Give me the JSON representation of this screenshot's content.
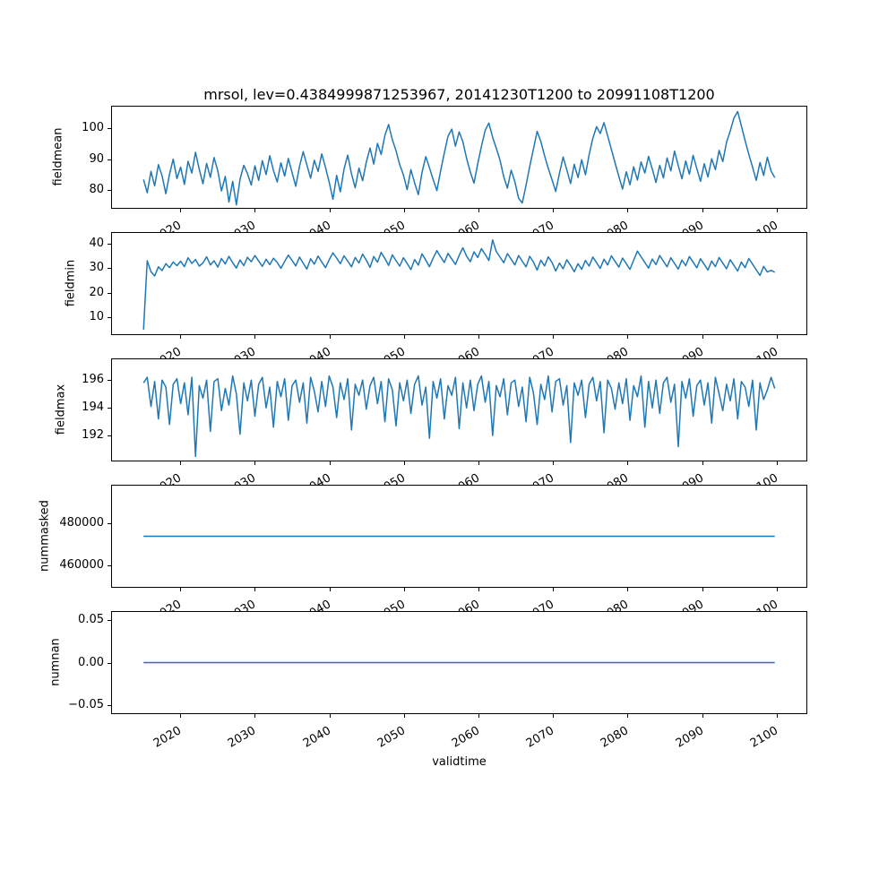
{
  "title": "mrsol, lev=0.4384999871253967, 20141230T1200 to 20991108T1200",
  "xlabel": "validtime",
  "line_color": "#1f77b4",
  "axis_color": "#000000",
  "background_color": "#ffffff",
  "xticks": {
    "values": [
      2020,
      2030,
      2040,
      2050,
      2060,
      2070,
      2080,
      2090,
      2100
    ],
    "labels": [
      "2020",
      "2030",
      "2040",
      "2050",
      "2060",
      "2070",
      "2080",
      "2090",
      "2100"
    ]
  },
  "chart_data": [
    {
      "type": "line",
      "name": "fieldmean",
      "ylabel": "fieldmean",
      "x_start": 2014.97,
      "x_end": 2099.86,
      "xlim": [
        2010.73,
        2104.11
      ],
      "ylim": [
        74.3,
        107.1
      ],
      "yticks": {
        "values": [
          80,
          90,
          100
        ],
        "labels": [
          "80",
          "90",
          "100"
        ]
      },
      "values": [
        83.5,
        79.2,
        86.1,
        81.4,
        88.3,
        84.7,
        78.9,
        85.2,
        90.1,
        83.8,
        87.5,
        81.9,
        89.4,
        85.6,
        92.3,
        86.8,
        82.1,
        88.7,
        84.2,
        90.6,
        86.3,
        79.8,
        84.5,
        76.2,
        82.9,
        75.3,
        83.6,
        88.1,
        85.4,
        81.7,
        87.9,
        83.2,
        89.6,
        85.1,
        91.2,
        86.4,
        82.7,
        88.9,
        84.6,
        90.3,
        85.7,
        81.3,
        87.8,
        92.5,
        88.2,
        83.9,
        89.7,
        86.1,
        91.8,
        87.4,
        82.6,
        77.1,
        84.8,
        79.5,
        86.9,
        91.4,
        85.3,
        80.8,
        87.2,
        83.1,
        89.1,
        93.7,
        88.5,
        95.2,
        91.6,
        97.8,
        101.3,
        96.4,
        92.8,
        88.3,
        84.9,
        80.2,
        86.7,
        82.4,
        78.6,
        85.8,
        90.9,
        87.3,
        83.5,
        79.9,
        86.2,
        92.1,
        97.5,
        99.8,
        94.3,
        98.9,
        95.7,
        90.4,
        85.9,
        82.3,
        88.6,
        94.2,
        99.4,
        101.8,
        97.2,
        93.6,
        89.8,
        84.4,
        80.7,
        86.5,
        82.8,
        77.4,
        75.9,
        81.6,
        87.7,
        93.3,
        99.1,
        95.8,
        91.2,
        87.1,
        83.4,
        79.6,
        85.5,
        90.8,
        86.6,
        82.2,
        88.4,
        84.1,
        89.9,
        85.0,
        91.5,
        96.9,
        100.6,
        98.4,
        101.9,
        97.6,
        93.2,
        88.8,
        84.5,
        80.4,
        86.0,
        81.8,
        87.6,
        83.3,
        89.2,
        85.6,
        91.0,
        86.9,
        82.5,
        88.1,
        84.0,
        90.5,
        86.3,
        92.7,
        88.0,
        83.7,
        89.5,
        85.2,
        91.3,
        87.0,
        82.9,
        88.6,
        84.3,
        90.2,
        86.7,
        92.9,
        89.3,
        95.6,
        99.2,
        103.4,
        105.5,
        100.9,
        96.1,
        91.7,
        87.5,
        83.2,
        89.0,
        84.8,
        90.7,
        86.2,
        84.1
      ]
    },
    {
      "type": "line",
      "name": "fieldmin",
      "ylabel": "fieldmin",
      "x_start": 2014.97,
      "x_end": 2099.86,
      "xlim": [
        2010.73,
        2104.11
      ],
      "ylim": [
        3.1,
        44.3
      ],
      "yticks": {
        "values": [
          10,
          20,
          30,
          40
        ],
        "labels": [
          "10",
          "20",
          "30",
          "40"
        ]
      },
      "values": [
        5.0,
        33.0,
        28.5,
        26.8,
        30.5,
        29.0,
        31.8,
        30.2,
        32.5,
        31.0,
        32.8,
        30.6,
        34.2,
        31.9,
        33.5,
        30.8,
        32.1,
        34.6,
        31.3,
        33.0,
        30.4,
        33.9,
        31.7,
        34.8,
        32.2,
        30.0,
        33.3,
        31.0,
        34.4,
        32.6,
        35.1,
        32.9,
        30.7,
        33.6,
        31.4,
        34.0,
        32.3,
        29.9,
        32.7,
        35.3,
        33.1,
        30.9,
        34.5,
        32.0,
        29.6,
        33.8,
        31.6,
        34.9,
        32.5,
        30.2,
        33.4,
        36.2,
        34.1,
        31.8,
        35.0,
        32.8,
        30.5,
        34.3,
        32.1,
        35.7,
        33.2,
        30.3,
        34.7,
        32.4,
        36.4,
        33.9,
        31.1,
        35.4,
        33.0,
        30.8,
        34.2,
        31.9,
        29.4,
        33.5,
        31.2,
        35.8,
        33.3,
        30.6,
        34.0,
        37.1,
        34.6,
        32.3,
        36.0,
        33.7,
        31.5,
        35.2,
        38.3,
        34.9,
        32.6,
        36.6,
        34.3,
        37.9,
        35.6,
        33.1,
        41.5,
        36.8,
        34.5,
        32.2,
        35.9,
        33.6,
        31.3,
        35.1,
        32.8,
        30.5,
        34.8,
        32.5,
        29.2,
        33.2,
        30.9,
        34.6,
        32.3,
        28.8,
        32.0,
        29.7,
        33.4,
        31.1,
        28.5,
        31.8,
        29.5,
        33.1,
        30.8,
        34.5,
        32.2,
        29.9,
        33.6,
        31.3,
        35.0,
        32.7,
        30.4,
        34.1,
        31.8,
        29.5,
        33.2,
        36.9,
        34.6,
        32.3,
        30.0,
        33.7,
        31.4,
        35.1,
        32.8,
        30.5,
        34.2,
        31.9,
        29.6,
        33.3,
        31.0,
        34.7,
        32.4,
        30.1,
        33.8,
        31.5,
        29.2,
        32.9,
        30.6,
        34.3,
        32.0,
        29.7,
        33.4,
        31.1,
        28.8,
        32.5,
        30.2,
        33.9,
        31.6,
        29.3,
        27.0,
        30.7,
        28.4,
        29.1,
        28.3
      ]
    },
    {
      "type": "line",
      "name": "fieldmax",
      "ylabel": "fieldmax",
      "x_start": 2014.97,
      "x_end": 2099.86,
      "xlim": [
        2010.73,
        2104.11
      ],
      "ylim": [
        190.2,
        197.5
      ],
      "yticks": {
        "values": [
          192,
          194,
          196
        ],
        "labels": [
          "192",
          "194",
          "196"
        ]
      },
      "values": [
        195.8,
        196.2,
        194.1,
        195.9,
        193.2,
        196.0,
        195.5,
        192.8,
        195.7,
        196.1,
        194.3,
        195.8,
        193.5,
        196.2,
        190.5,
        195.6,
        194.7,
        196.0,
        192.3,
        195.9,
        196.1,
        193.8,
        195.4,
        194.2,
        196.3,
        195.0,
        192.1,
        195.8,
        194.5,
        196.0,
        193.4,
        195.7,
        196.2,
        194.0,
        195.5,
        192.6,
        195.9,
        194.8,
        196.1,
        193.1,
        195.6,
        196.0,
        194.4,
        195.8,
        192.9,
        196.2,
        195.2,
        193.7,
        195.9,
        194.1,
        196.3,
        195.5,
        193.3,
        195.8,
        194.6,
        196.1,
        192.4,
        195.7,
        194.9,
        196.0,
        193.9,
        195.6,
        196.2,
        194.3,
        195.9,
        193.0,
        196.1,
        195.3,
        192.7,
        195.8,
        194.5,
        196.0,
        193.6,
        195.7,
        196.3,
        194.2,
        195.5,
        191.8,
        195.9,
        194.7,
        196.1,
        193.2,
        195.6,
        194.9,
        196.2,
        192.5,
        195.8,
        194.0,
        196.0,
        193.8,
        195.7,
        196.3,
        194.4,
        195.9,
        192.0,
        195.6,
        194.8,
        196.1,
        193.5,
        195.8,
        196.0,
        194.1,
        195.5,
        193.0,
        196.2,
        195.1,
        192.8,
        195.7,
        194.6,
        196.3,
        193.7,
        195.9,
        196.1,
        194.2,
        195.6,
        191.5,
        195.8,
        194.9,
        196.0,
        193.3,
        195.7,
        196.2,
        194.5,
        195.9,
        192.2,
        196.0,
        195.4,
        193.9,
        195.8,
        194.3,
        196.1,
        193.1,
        195.6,
        194.8,
        196.3,
        192.6,
        195.9,
        194.0,
        196.0,
        193.6,
        195.8,
        196.2,
        194.4,
        195.7,
        191.2,
        195.9,
        194.7,
        196.1,
        193.4,
        195.6,
        196.0,
        194.2,
        195.8,
        192.9,
        196.2,
        195.0,
        193.8,
        195.7,
        194.5,
        196.1,
        193.2,
        195.9,
        195.5,
        194.1,
        196.0,
        192.4,
        195.8,
        194.6,
        195.3,
        196.2,
        195.4
      ]
    },
    {
      "type": "line",
      "name": "nummasked",
      "ylabel": "nummasked",
      "x_start": 2014.97,
      "x_end": 2099.86,
      "xlim": [
        2010.73,
        2104.11
      ],
      "ylim": [
        450036,
        497408
      ],
      "yticks": {
        "values": [
          460000,
          480000
        ],
        "labels": [
          "460000",
          "480000"
        ]
      },
      "values": [
        473722,
        473722
      ]
    },
    {
      "type": "line",
      "name": "numnan",
      "ylabel": "numnan",
      "x_start": 2014.97,
      "x_end": 2099.86,
      "xlim": [
        2010.73,
        2104.11
      ],
      "ylim": [
        -0.059,
        0.059
      ],
      "yticks": {
        "values": [
          -0.05,
          0,
          0.05
        ],
        "labels": [
          "−0.05",
          "0.00",
          "0.05"
        ]
      },
      "values": [
        0,
        0
      ]
    }
  ]
}
